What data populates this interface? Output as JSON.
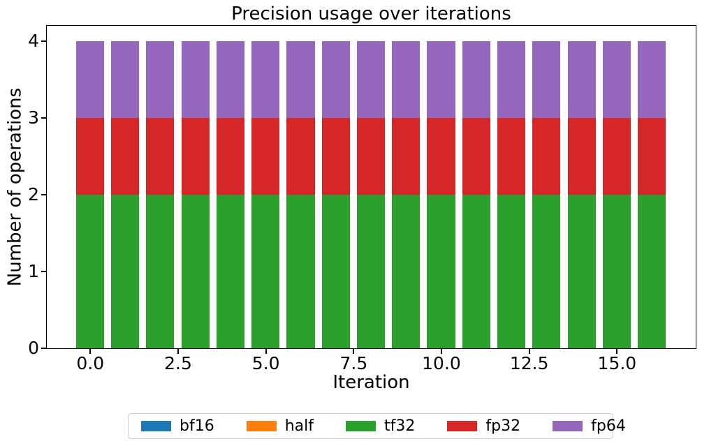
{
  "chart_data": {
    "type": "bar",
    "stacked": true,
    "title": "Precision usage over iterations",
    "xlabel": "Iteration",
    "ylabel": "Number of operations",
    "x": [
      0,
      1,
      2,
      3,
      4,
      5,
      6,
      7,
      8,
      9,
      10,
      11,
      12,
      13,
      14,
      15,
      16
    ],
    "series": [
      {
        "name": "bf16",
        "color": "#1f77b4",
        "values": [
          0,
          0,
          0,
          0,
          0,
          0,
          0,
          0,
          0,
          0,
          0,
          0,
          0,
          0,
          0,
          0,
          0
        ]
      },
      {
        "name": "half",
        "color": "#ff7f0e",
        "values": [
          0,
          0,
          0,
          0,
          0,
          0,
          0,
          0,
          0,
          0,
          0,
          0,
          0,
          0,
          0,
          0,
          0
        ]
      },
      {
        "name": "tf32",
        "color": "#2ca02c",
        "values": [
          2,
          2,
          2,
          2,
          2,
          2,
          2,
          2,
          2,
          2,
          2,
          2,
          2,
          2,
          2,
          2,
          2
        ]
      },
      {
        "name": "fp32",
        "color": "#d62728",
        "values": [
          1,
          1,
          1,
          1,
          1,
          1,
          1,
          1,
          1,
          1,
          1,
          1,
          1,
          1,
          1,
          1,
          1
        ]
      },
      {
        "name": "fp64",
        "color": "#9467bd",
        "values": [
          1,
          1,
          1,
          1,
          1,
          1,
          1,
          1,
          1,
          1,
          1,
          1,
          1,
          1,
          1,
          1,
          1
        ]
      }
    ],
    "bar_width": 0.8,
    "xlim": [
      -1.24,
      17.24
    ],
    "ylim": [
      0,
      4.2
    ],
    "xticks": [
      0,
      2.5,
      5,
      7.5,
      10,
      12.5,
      15
    ],
    "xtick_labels": [
      "0.0",
      "2.5",
      "5.0",
      "7.5",
      "10.0",
      "12.5",
      "15.0"
    ],
    "yticks": [
      0,
      1,
      2,
      3,
      4
    ],
    "ytick_labels": [
      "0",
      "1",
      "2",
      "3",
      "4"
    ],
    "grid": false,
    "legend_position": "below-center",
    "legend_labels": [
      "bf16",
      "half",
      "tf32",
      "fp32",
      "fp64"
    ]
  }
}
